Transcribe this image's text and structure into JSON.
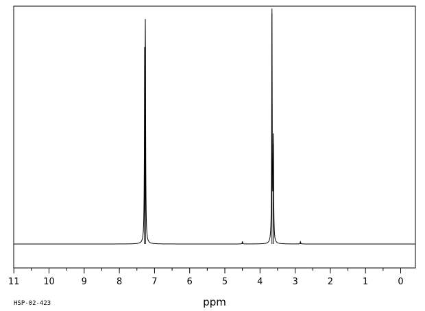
{
  "chart_data": {
    "type": "line",
    "title": "",
    "xlabel": "ppm",
    "ylabel": "",
    "xlim": [
      11,
      0
    ],
    "x_reversed": true,
    "ylim": [
      0,
      1
    ],
    "grid": false,
    "legend": "none",
    "x_major_ticks": [
      11,
      10,
      9,
      8,
      7,
      6,
      5,
      4,
      3,
      2,
      1,
      0
    ],
    "x_tick_labels": [
      "11",
      "10",
      "9",
      "8",
      "7",
      "6",
      "5",
      "4",
      "3",
      "2",
      "1",
      "0"
    ],
    "x_minor_step": 0.5,
    "catalog_id": "HSP-02-423",
    "line_color": "#000000",
    "series": [
      {
        "peaks": [
          {
            "ppm": 7.26,
            "height": 0.83
          },
          {
            "ppm": 7.28,
            "height": 0.7
          },
          {
            "ppm": 4.5,
            "height": 0.01
          },
          {
            "ppm": 3.66,
            "height": 0.97
          },
          {
            "ppm": 3.62,
            "height": 0.42
          },
          {
            "ppm": 2.85,
            "height": 0.01
          }
        ]
      }
    ]
  }
}
